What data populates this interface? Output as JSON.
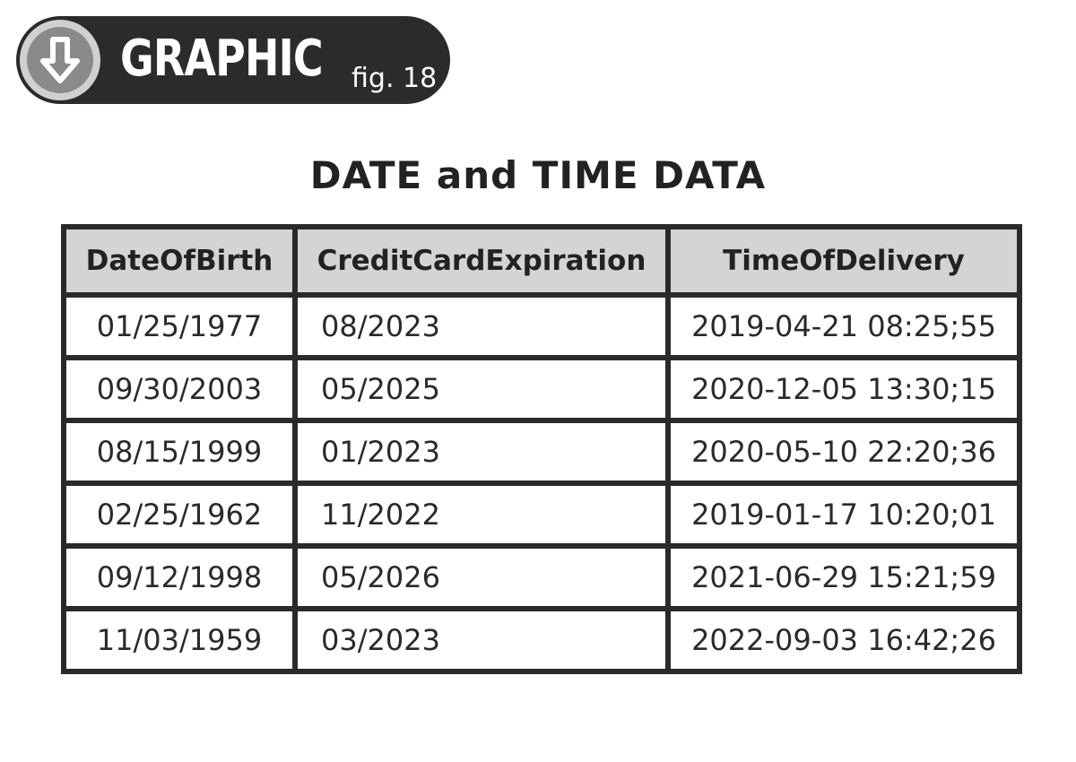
{
  "badge": {
    "icon": "down-arrow-icon",
    "word": "GRAPHIC",
    "fig": "fig. 18"
  },
  "title": "DATE and TIME DATA",
  "table": {
    "headers": [
      "DateOfBirth",
      "CreditCardExpiration",
      "TimeOfDelivery"
    ],
    "rows": [
      [
        "01/25/1977",
        "08/2023",
        "2019-04-21 08:25;55"
      ],
      [
        "09/30/2003",
        "05/2025",
        "2020-12-05 13:30;15"
      ],
      [
        "08/15/1999",
        "01/2023",
        "2020-05-10 22:20;36"
      ],
      [
        "02/25/1962",
        "11/2022",
        "2019-01-17 10:20;01"
      ],
      [
        "09/12/1998",
        "05/2026",
        "2021-06-29 15:21;59"
      ],
      [
        "11/03/1959",
        "03/2023",
        "2022-09-03 16:42;26"
      ]
    ]
  },
  "colors": {
    "badge_bg": "#2b2b2b",
    "header_bg": "#d4d4d4",
    "border": "#2a2a2a"
  }
}
